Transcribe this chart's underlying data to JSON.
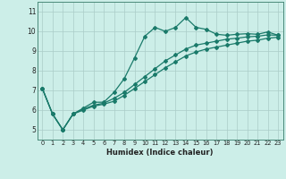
{
  "xlabel": "Humidex (Indice chaleur)",
  "bg_color": "#cceee8",
  "grid_color": "#aaccc8",
  "line_color": "#1a7a6a",
  "xlim": [
    -0.5,
    23.5
  ],
  "ylim": [
    4.5,
    11.5
  ],
  "xticks": [
    0,
    1,
    2,
    3,
    4,
    5,
    6,
    7,
    8,
    9,
    10,
    11,
    12,
    13,
    14,
    15,
    16,
    17,
    18,
    19,
    20,
    21,
    22,
    23
  ],
  "yticks": [
    5,
    6,
    7,
    8,
    9,
    10,
    11
  ],
  "series1_x": [
    0,
    1,
    2,
    3,
    4,
    5,
    6,
    7,
    8,
    9,
    10,
    11,
    12,
    13,
    14,
    15,
    16,
    17,
    18,
    19,
    20,
    21,
    22,
    23
  ],
  "series1_y": [
    7.1,
    5.8,
    5.0,
    5.8,
    6.1,
    6.4,
    6.4,
    6.9,
    7.6,
    8.65,
    9.75,
    10.2,
    10.0,
    10.2,
    10.7,
    10.2,
    10.1,
    9.85,
    9.8,
    9.85,
    9.88,
    9.85,
    9.97,
    9.8
  ],
  "series2_x": [
    0,
    1,
    2,
    3,
    4,
    5,
    6,
    7,
    8,
    9,
    10,
    11,
    12,
    13,
    14,
    15,
    16,
    17,
    18,
    19,
    20,
    21,
    22,
    23
  ],
  "series2_y": [
    7.1,
    5.8,
    5.0,
    5.8,
    6.05,
    6.25,
    6.35,
    6.6,
    6.9,
    7.3,
    7.7,
    8.1,
    8.5,
    8.8,
    9.1,
    9.3,
    9.4,
    9.5,
    9.6,
    9.65,
    9.72,
    9.75,
    9.82,
    9.8
  ],
  "series3_x": [
    0,
    1,
    2,
    3,
    4,
    5,
    6,
    7,
    8,
    9,
    10,
    11,
    12,
    13,
    14,
    15,
    16,
    17,
    18,
    19,
    20,
    21,
    22,
    23
  ],
  "series3_y": [
    7.1,
    5.8,
    5.0,
    5.8,
    6.0,
    6.2,
    6.3,
    6.45,
    6.75,
    7.1,
    7.45,
    7.8,
    8.15,
    8.45,
    8.75,
    8.95,
    9.1,
    9.2,
    9.3,
    9.4,
    9.5,
    9.55,
    9.65,
    9.7
  ],
  "xlabel_fontsize": 6.0,
  "tick_fontsize_x": 4.8,
  "tick_fontsize_y": 5.5
}
